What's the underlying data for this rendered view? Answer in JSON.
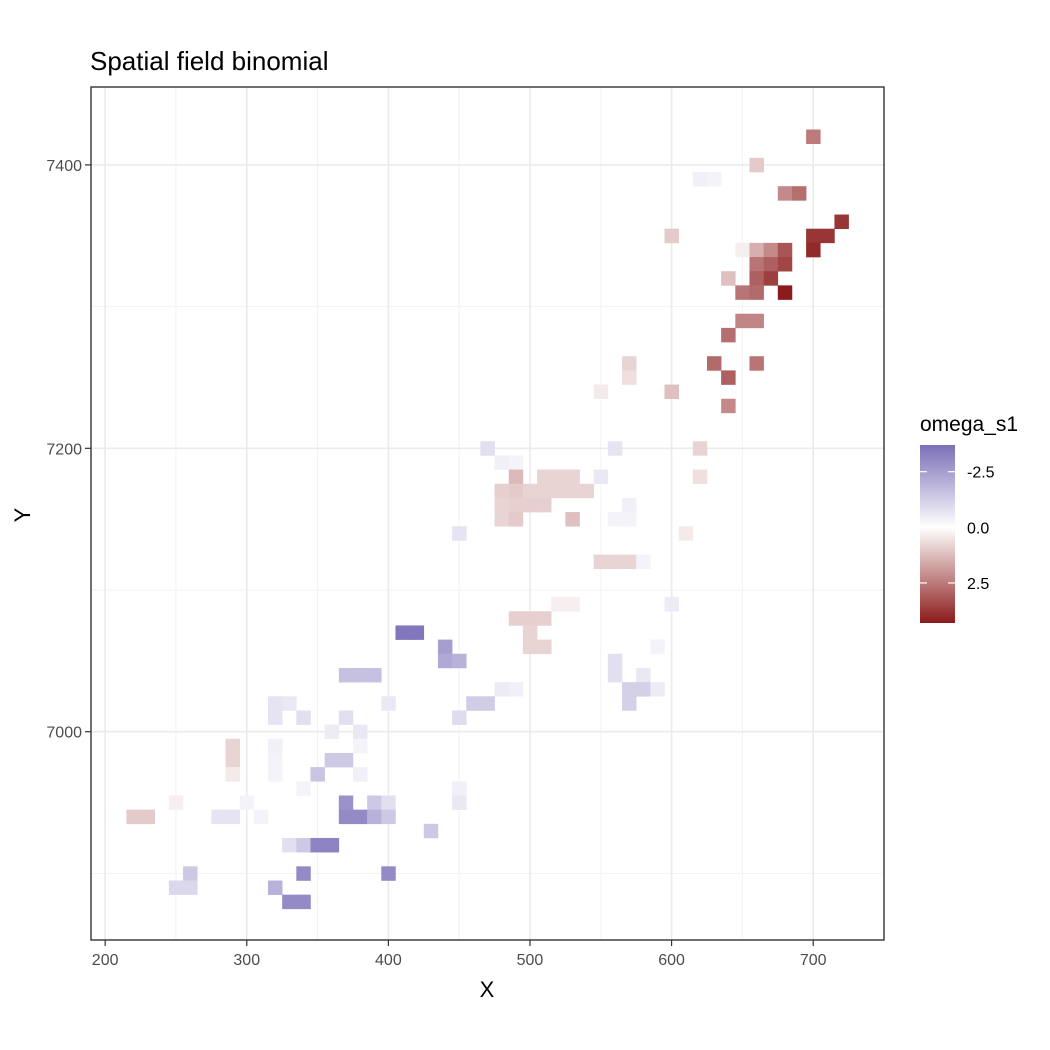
{
  "chart_data": {
    "type": "heatmap",
    "title": "Spatial field binomial",
    "xlabel": "X",
    "ylabel": "Y",
    "xlim": [
      190,
      750
    ],
    "ylim": [
      6853,
      7455
    ],
    "x_ticks": [
      200,
      300,
      400,
      500,
      600,
      700
    ],
    "y_ticks": [
      7000,
      7200,
      7400
    ],
    "x_tick_labels": [
      "200",
      "300",
      "400",
      "500",
      "600",
      "700"
    ],
    "y_tick_labels": [
      "7000",
      "7200",
      "7400"
    ],
    "grid": true,
    "cell_width": 10,
    "cell_height": 10,
    "legend": {
      "title": "omega_s1",
      "placement": "right",
      "color_min": -3.7,
      "color_max": 4.3,
      "reversed": true,
      "tick_values": [
        -2.5,
        0,
        2.5
      ],
      "tick_labels": [
        "-2.5",
        "0.0",
        "2.5"
      ],
      "colors": {
        "low": "#7b6fb8",
        "mid": "#ffffff",
        "high": "#8b1a1a"
      }
    },
    "cells": [
      [
        700,
        7420,
        2.5
      ],
      [
        660,
        7400,
        1.0
      ],
      [
        620,
        7390,
        -0.4
      ],
      [
        630,
        7390,
        -0.3
      ],
      [
        680,
        7380,
        2.2
      ],
      [
        690,
        7380,
        2.7
      ],
      [
        720,
        7360,
        3.8
      ],
      [
        700,
        7350,
        3.8
      ],
      [
        710,
        7350,
        3.8
      ],
      [
        600,
        7350,
        1.0
      ],
      [
        650,
        7340,
        0.3
      ],
      [
        660,
        7340,
        1.5
      ],
      [
        670,
        7340,
        2.2
      ],
      [
        680,
        7340,
        3.2
      ],
      [
        700,
        7340,
        4.0
      ],
      [
        660,
        7330,
        2.6
      ],
      [
        670,
        7330,
        3.0
      ],
      [
        680,
        7330,
        3.5
      ],
      [
        640,
        7320,
        1.2
      ],
      [
        660,
        7320,
        3.0
      ],
      [
        670,
        7320,
        3.6
      ],
      [
        650,
        7310,
        2.6
      ],
      [
        660,
        7310,
        2.8
      ],
      [
        680,
        7310,
        4.3
      ],
      [
        650,
        7290,
        2.3
      ],
      [
        660,
        7290,
        2.3
      ],
      [
        640,
        7280,
        2.7
      ],
      [
        570,
        7260,
        0.8
      ],
      [
        630,
        7260,
        2.8
      ],
      [
        660,
        7260,
        2.6
      ],
      [
        570,
        7250,
        0.6
      ],
      [
        640,
        7250,
        3.0
      ],
      [
        550,
        7240,
        0.4
      ],
      [
        600,
        7240,
        1.2
      ],
      [
        640,
        7230,
        2.2
      ],
      [
        470,
        7200,
        -0.8
      ],
      [
        560,
        7200,
        -0.7
      ],
      [
        620,
        7200,
        0.8
      ],
      [
        480,
        7190,
        -0.4
      ],
      [
        490,
        7190,
        -0.3
      ],
      [
        490,
        7180,
        1.3
      ],
      [
        510,
        7180,
        0.8
      ],
      [
        520,
        7180,
        0.8
      ],
      [
        530,
        7180,
        0.8
      ],
      [
        550,
        7180,
        -0.6
      ],
      [
        620,
        7180,
        0.6
      ],
      [
        480,
        7170,
        0.9
      ],
      [
        490,
        7170,
        1.0
      ],
      [
        500,
        7170,
        0.8
      ],
      [
        510,
        7170,
        0.8
      ],
      [
        520,
        7170,
        0.8
      ],
      [
        530,
        7170,
        0.8
      ],
      [
        540,
        7170,
        0.8
      ],
      [
        480,
        7160,
        0.8
      ],
      [
        490,
        7160,
        0.9
      ],
      [
        500,
        7160,
        0.9
      ],
      [
        510,
        7160,
        0.9
      ],
      [
        570,
        7160,
        -0.4
      ],
      [
        480,
        7150,
        0.8
      ],
      [
        490,
        7150,
        1.0
      ],
      [
        530,
        7150,
        1.2
      ],
      [
        560,
        7150,
        -0.3
      ],
      [
        570,
        7150,
        -0.3
      ],
      [
        450,
        7140,
        -0.7
      ],
      [
        610,
        7140,
        0.4
      ],
      [
        550,
        7120,
        0.8
      ],
      [
        560,
        7120,
        0.8
      ],
      [
        570,
        7120,
        0.8
      ],
      [
        580,
        7120,
        -0.3
      ],
      [
        520,
        7090,
        0.3
      ],
      [
        530,
        7090,
        0.3
      ],
      [
        600,
        7090,
        -0.5
      ],
      [
        490,
        7080,
        0.9
      ],
      [
        500,
        7080,
        0.9
      ],
      [
        510,
        7080,
        0.9
      ],
      [
        410,
        7070,
        -3.5
      ],
      [
        420,
        7070,
        -3.5
      ],
      [
        500,
        7070,
        0.8
      ],
      [
        440,
        7060,
        -2.5
      ],
      [
        500,
        7060,
        0.8
      ],
      [
        510,
        7060,
        0.8
      ],
      [
        590,
        7060,
        -0.3
      ],
      [
        440,
        7050,
        -2.2
      ],
      [
        450,
        7050,
        -2.0
      ],
      [
        560,
        7050,
        -0.8
      ],
      [
        370,
        7040,
        -1.6
      ],
      [
        380,
        7040,
        -1.6
      ],
      [
        390,
        7040,
        -1.6
      ],
      [
        560,
        7040,
        -0.8
      ],
      [
        580,
        7040,
        -0.6
      ],
      [
        480,
        7030,
        -0.5
      ],
      [
        490,
        7030,
        -0.4
      ],
      [
        570,
        7030,
        -1.2
      ],
      [
        580,
        7030,
        -1.2
      ],
      [
        590,
        7030,
        -0.5
      ],
      [
        320,
        7020,
        -0.7
      ],
      [
        330,
        7020,
        -0.6
      ],
      [
        400,
        7020,
        -0.6
      ],
      [
        460,
        7020,
        -1.3
      ],
      [
        470,
        7020,
        -1.3
      ],
      [
        570,
        7020,
        -1.2
      ],
      [
        320,
        7010,
        -0.7
      ],
      [
        340,
        7010,
        -0.8
      ],
      [
        370,
        7010,
        -0.8
      ],
      [
        450,
        7010,
        -0.9
      ],
      [
        360,
        7000,
        -0.5
      ],
      [
        380,
        7000,
        -0.6
      ],
      [
        290,
        6990,
        0.8
      ],
      [
        320,
        6990,
        -0.4
      ],
      [
        380,
        6990,
        -0.3
      ],
      [
        290,
        6980,
        0.8
      ],
      [
        320,
        6980,
        -0.3
      ],
      [
        360,
        6980,
        -1.4
      ],
      [
        370,
        6980,
        -1.4
      ],
      [
        290,
        6970,
        0.4
      ],
      [
        320,
        6970,
        -0.3
      ],
      [
        350,
        6970,
        -1.5
      ],
      [
        380,
        6970,
        -0.4
      ],
      [
        340,
        6960,
        -0.3
      ],
      [
        450,
        6960,
        -0.4
      ],
      [
        250,
        6950,
        0.3
      ],
      [
        300,
        6950,
        -0.3
      ],
      [
        370,
        6950,
        -2.8
      ],
      [
        390,
        6950,
        -1.4
      ],
      [
        400,
        6950,
        -0.8
      ],
      [
        450,
        6950,
        -0.6
      ],
      [
        220,
        6940,
        1.0
      ],
      [
        230,
        6940,
        1.0
      ],
      [
        280,
        6940,
        -0.7
      ],
      [
        290,
        6940,
        -0.7
      ],
      [
        310,
        6940,
        -0.3
      ],
      [
        370,
        6940,
        -3.0
      ],
      [
        380,
        6940,
        -3.0
      ],
      [
        390,
        6940,
        -2.0
      ],
      [
        400,
        6940,
        -1.4
      ],
      [
        430,
        6930,
        -1.4
      ],
      [
        330,
        6920,
        -0.8
      ],
      [
        340,
        6920,
        -1.4
      ],
      [
        350,
        6920,
        -3.2
      ],
      [
        360,
        6920,
        -3.2
      ],
      [
        260,
        6900,
        -1.4
      ],
      [
        340,
        6900,
        -3.0
      ],
      [
        400,
        6900,
        -3.0
      ],
      [
        250,
        6890,
        -1.0
      ],
      [
        260,
        6890,
        -1.0
      ],
      [
        320,
        6890,
        -2.0
      ],
      [
        330,
        6880,
        -3.0
      ],
      [
        340,
        6880,
        -3.0
      ]
    ]
  }
}
